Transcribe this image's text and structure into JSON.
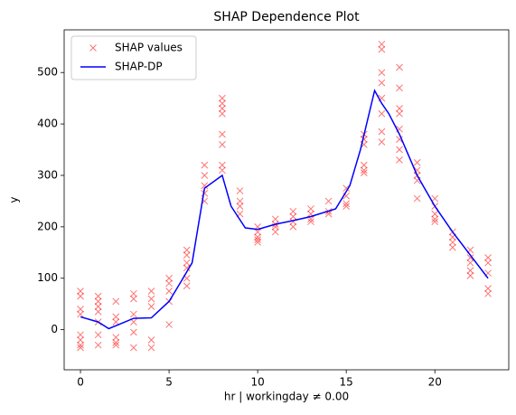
{
  "chart_data": {
    "type": "scatter",
    "title": "SHAP Dependence Plot",
    "x_label": "hr | workingday ≠ 0.00",
    "y_label": "y",
    "xlim": [
      -0.92,
      24.17
    ],
    "ylim": [
      -78,
      583
    ],
    "xticks": [
      0,
      5,
      10,
      15,
      20
    ],
    "yticks": [
      0,
      100,
      200,
      300,
      400,
      500
    ],
    "legend": "upper left",
    "series": [
      {
        "name": "SHAP values",
        "kind": "scatter",
        "color": "#ff0000",
        "x": [
          0,
          0,
          0,
          0,
          0,
          0,
          0,
          0,
          1,
          1,
          1,
          1,
          1,
          1,
          1,
          2,
          2,
          2,
          2,
          2,
          2,
          3,
          3,
          3,
          3,
          3,
          3,
          4,
          4,
          4,
          4,
          4,
          5,
          5,
          5,
          5,
          5,
          6,
          6,
          6,
          6,
          6,
          6,
          7,
          7,
          7,
          7,
          7,
          8,
          8,
          8,
          8,
          8,
          8,
          8,
          8,
          9,
          9,
          9,
          9,
          10,
          10,
          10,
          10,
          10,
          11,
          11,
          11,
          11,
          12,
          12,
          12,
          12,
          13,
          13,
          13,
          13,
          14,
          14,
          14,
          15,
          15,
          15,
          15,
          16,
          16,
          16,
          16,
          16,
          16,
          17,
          17,
          17,
          17,
          17,
          17,
          17,
          17,
          18,
          18,
          18,
          18,
          18,
          18,
          18,
          18,
          19,
          19,
          19,
          19,
          19,
          20,
          20,
          20,
          20,
          20,
          21,
          21,
          21,
          21,
          22,
          22,
          22,
          22,
          22,
          23,
          23,
          23,
          23,
          23
        ],
        "values": [
          75,
          65,
          40,
          30,
          -10,
          -20,
          -30,
          -35,
          65,
          55,
          45,
          35,
          15,
          -10,
          -30,
          55,
          25,
          15,
          -15,
          -25,
          -30,
          70,
          60,
          30,
          15,
          -5,
          -35,
          75,
          60,
          45,
          -20,
          -35,
          100,
          90,
          75,
          55,
          10,
          155,
          145,
          130,
          120,
          100,
          85,
          320,
          300,
          280,
          265,
          250,
          450,
          440,
          430,
          420,
          380,
          360,
          320,
          310,
          270,
          250,
          240,
          225,
          200,
          190,
          180,
          175,
          170,
          215,
          205,
          200,
          190,
          230,
          220,
          210,
          200,
          235,
          225,
          215,
          210,
          250,
          230,
          225,
          275,
          260,
          245,
          240,
          380,
          370,
          360,
          320,
          310,
          305,
          555,
          545,
          500,
          480,
          450,
          420,
          385,
          365,
          510,
          470,
          430,
          420,
          390,
          370,
          350,
          330,
          325,
          310,
          300,
          290,
          255,
          255,
          240,
          225,
          215,
          210,
          190,
          180,
          170,
          160,
          155,
          140,
          130,
          115,
          105,
          140,
          130,
          110,
          80,
          70
        ]
      },
      {
        "name": "SHAP-DP",
        "kind": "line",
        "color": "#0000ff",
        "x": [
          0,
          1,
          1.6,
          2.3,
          3,
          4,
          5,
          5.7,
          6.3,
          7,
          8,
          8.5,
          9.3,
          10,
          11,
          12,
          13,
          14.4,
          15.2,
          15.8,
          16.6,
          17,
          17.4,
          18,
          19,
          20,
          21,
          22,
          23
        ],
        "values": [
          25,
          15,
          2,
          12,
          22,
          23,
          55,
          95,
          130,
          275,
          300,
          240,
          198,
          195,
          205,
          212,
          220,
          235,
          280,
          350,
          465,
          440,
          420,
          380,
          300,
          240,
          190,
          145,
          100
        ]
      }
    ]
  }
}
